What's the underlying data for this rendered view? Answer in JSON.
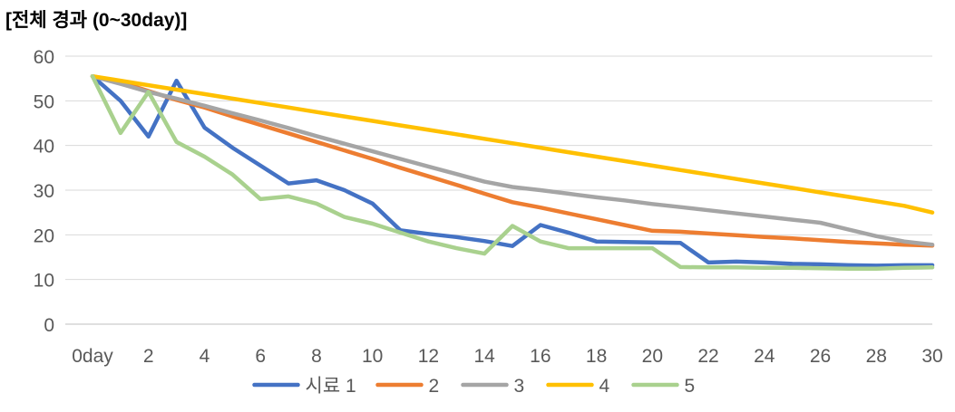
{
  "chart_data": {
    "type": "line",
    "title": "[전체 경과 (0~30day)]",
    "xlabel": "",
    "ylabel": "",
    "ylim": [
      0,
      60
    ],
    "yticks": [
      0,
      10,
      20,
      30,
      40,
      50,
      60
    ],
    "xlim": [
      0,
      30
    ],
    "xtick_labels": [
      "0day",
      "2",
      "4",
      "6",
      "8",
      "10",
      "12",
      "14",
      "16",
      "18",
      "20",
      "22",
      "24",
      "26",
      "28",
      "30"
    ],
    "xtick_values": [
      0,
      2,
      4,
      6,
      8,
      10,
      12,
      14,
      16,
      18,
      20,
      22,
      24,
      26,
      28,
      30
    ],
    "grid": "horizontal",
    "legend_position": "bottom",
    "x": [
      0,
      1,
      2,
      3,
      4,
      5,
      6,
      7,
      8,
      9,
      10,
      11,
      12,
      13,
      14,
      15,
      16,
      17,
      18,
      19,
      20,
      21,
      22,
      23,
      24,
      25,
      26,
      27,
      28,
      29,
      30
    ],
    "series": [
      {
        "name": "시료 1",
        "color": "#4472C4",
        "values": [
          55.5,
          50,
          42,
          54.5,
          44,
          39.5,
          35.5,
          31.5,
          32.2,
          30,
          27,
          21,
          20.2,
          19.5,
          18.6,
          17.5,
          22.2,
          20.5,
          18.5,
          18.4,
          18.3,
          18.2,
          13.8,
          14,
          13.8,
          13.5,
          13.4,
          13.2,
          13.1,
          13.2,
          13.2
        ]
      },
      {
        "name": "2",
        "color": "#ED7D31",
        "values": [
          55.5,
          54.2,
          52.2,
          50.2,
          48.5,
          46.5,
          44.6,
          42.7,
          40.8,
          38.9,
          37,
          35,
          33.1,
          31.2,
          29.2,
          27.3,
          26.1,
          24.8,
          23.5,
          22.2,
          20.9,
          20.7,
          20.3,
          19.9,
          19.5,
          19.2,
          18.8,
          18.4,
          18.1,
          17.8,
          17.6
        ]
      },
      {
        "name": "3",
        "color": "#A5A5A5",
        "values": [
          55.5,
          53.8,
          52,
          50.5,
          48.9,
          47.2,
          45.6,
          43.9,
          42.1,
          40.4,
          38.7,
          37,
          35.3,
          33.6,
          31.9,
          30.7,
          30,
          29.2,
          28.4,
          27.7,
          26.9,
          26.2,
          25.5,
          24.8,
          24.1,
          23.4,
          22.7,
          21.2,
          19.7,
          18.5,
          17.8
        ]
      },
      {
        "name": "4",
        "color": "#FFC000",
        "values": [
          55.5,
          54.5,
          53.5,
          52.5,
          51.5,
          50.5,
          49.5,
          48.5,
          47.5,
          46.5,
          45.5,
          44.5,
          43.5,
          42.5,
          41.5,
          40.5,
          39.5,
          38.5,
          37.5,
          36.5,
          35.5,
          34.5,
          33.5,
          32.5,
          31.5,
          30.5,
          29.5,
          28.5,
          27.5,
          26.5,
          25
        ]
      },
      {
        "name": "5",
        "color": "#A9D18E",
        "values": [
          55.5,
          42.8,
          52,
          40.8,
          37.5,
          33.5,
          28,
          28.6,
          27,
          24,
          22.5,
          20.5,
          18.5,
          17,
          15.8,
          22,
          18.5,
          17,
          17,
          17,
          17,
          12.8,
          12.7,
          12.7,
          12.6,
          12.6,
          12.5,
          12.4,
          12.4,
          12.6,
          12.7
        ]
      }
    ]
  }
}
